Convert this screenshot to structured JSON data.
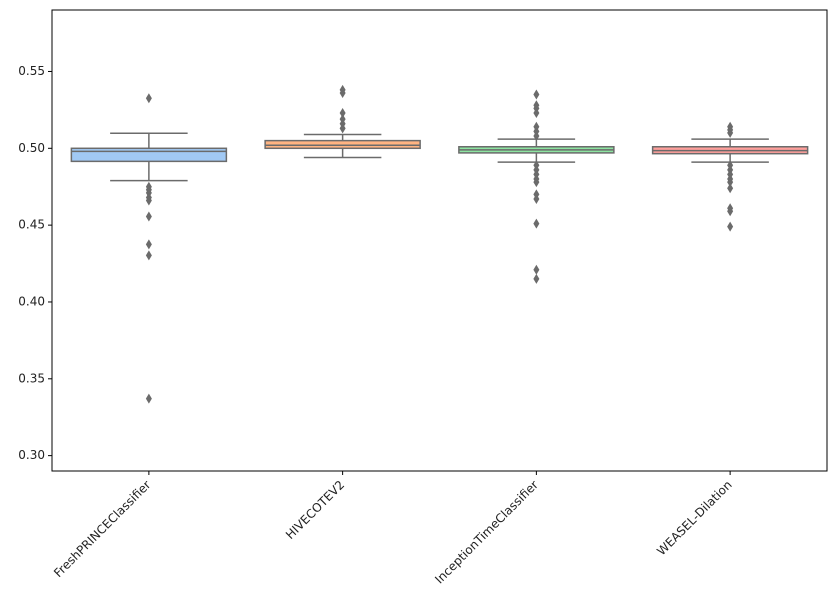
{
  "chart_data": {
    "type": "box",
    "ylim": [
      0.29,
      0.59
    ],
    "yticks": [
      {
        "value": 0.3,
        "label": "0.30"
      },
      0.35,
      {
        "value": 0.4,
        "label": "0.40"
      },
      0.45,
      {
        "value": 0.5,
        "label": "0.50"
      },
      0.55
    ],
    "edge_color": "#6b6b6b",
    "boxes": [
      {
        "name": "FreshPRINCEClassifier",
        "color": "#a1c9f4",
        "whislo": 0.479,
        "q1": 0.4915,
        "med": 0.498,
        "q3": 0.5,
        "whishi": 0.5098,
        "fliers": [
          0.5326,
          0.475,
          0.473,
          0.471,
          0.468,
          0.466,
          0.4556,
          0.4375,
          0.4303,
          0.3371
        ]
      },
      {
        "name": "HIVECOTEV2",
        "color": "#ffb482",
        "whislo": 0.494,
        "q1": 0.5,
        "med": 0.502,
        "q3": 0.505,
        "whishi": 0.509,
        "fliers": [
          0.538,
          0.536,
          0.523,
          0.519,
          0.516,
          0.513
        ]
      },
      {
        "name": "InceptionTimeClassifier",
        "color": "#8de5a1",
        "whislo": 0.491,
        "q1": 0.497,
        "med": 0.499,
        "q3": 0.501,
        "whishi": 0.506,
        "fliers": [
          0.535,
          0.528,
          0.526,
          0.523,
          0.514,
          0.511,
          0.508,
          0.489,
          0.486,
          0.483,
          0.48,
          0.478,
          0.47,
          0.467,
          0.451,
          0.421,
          0.415
        ]
      },
      {
        "name": "WEASEL-Dilation",
        "color": "#ff9f9b",
        "whislo": 0.491,
        "q1": 0.4965,
        "med": 0.4985,
        "q3": 0.501,
        "whishi": 0.506,
        "fliers": [
          0.514,
          0.512,
          0.51,
          0.489,
          0.486,
          0.483,
          0.48,
          0.478,
          0.474,
          0.461,
          0.459,
          0.449
        ]
      }
    ]
  }
}
